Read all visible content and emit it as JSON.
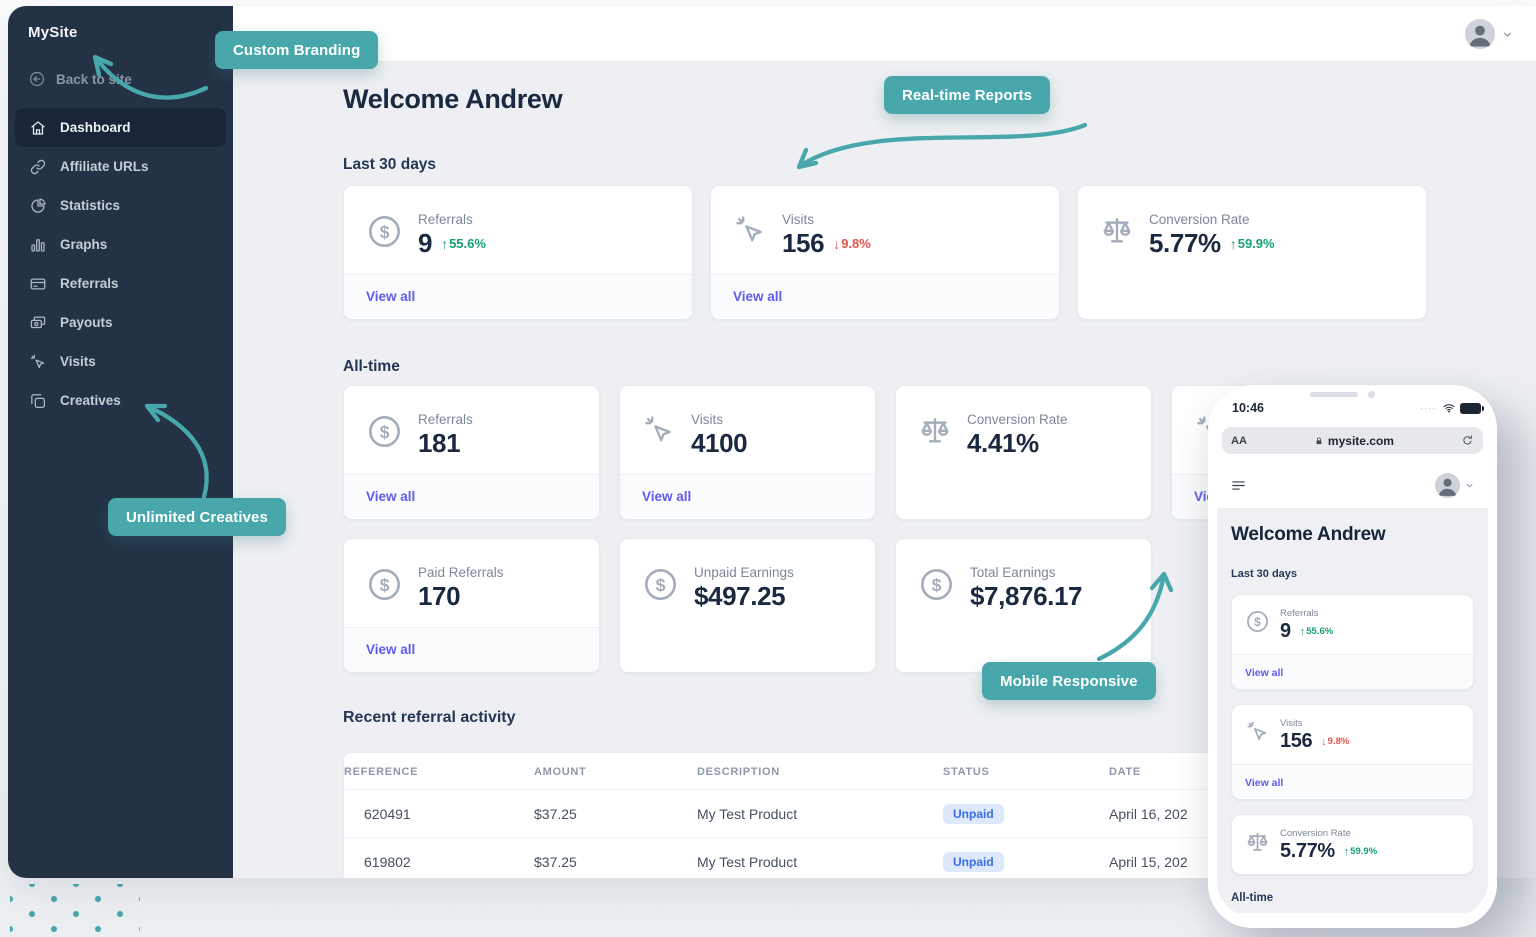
{
  "colors": {
    "teal": "#48A7AB",
    "sidebar": "#233245",
    "link": "#5F5AF0",
    "green": "#16A06F",
    "red": "#E5534B",
    "navy": "#1B2940"
  },
  "brand": {
    "name": "MySite",
    "back_to_site": "Back to site"
  },
  "sidebar_items": [
    {
      "label": "Dashboard",
      "icon": "home-icon",
      "active": true
    },
    {
      "label": "Affiliate URLs",
      "icon": "link-icon",
      "active": false
    },
    {
      "label": "Statistics",
      "icon": "pie-chart-icon",
      "active": false
    },
    {
      "label": "Graphs",
      "icon": "bar-chart-icon",
      "active": false
    },
    {
      "label": "Referrals",
      "icon": "credit-card-icon",
      "active": false
    },
    {
      "label": "Payouts",
      "icon": "cash-icon",
      "active": false
    },
    {
      "label": "Visits",
      "icon": "cursor-click-icon",
      "active": false
    },
    {
      "label": "Creatives",
      "icon": "images-icon",
      "active": false
    }
  ],
  "callouts": [
    {
      "label": "Custom Branding"
    },
    {
      "label": "Real-time Reports"
    },
    {
      "label": "Unlimited Creatives"
    },
    {
      "label": "Mobile Responsive"
    }
  ],
  "main": {
    "welcome": "Welcome Andrew",
    "sections": {
      "last30": {
        "title": "Last 30 days",
        "cards": [
          {
            "icon": "dollar-circle-icon",
            "label": "Referrals",
            "value": "9",
            "delta": "55.6%",
            "trend": "up",
            "view_all": "View all"
          },
          {
            "icon": "cursor-click-icon",
            "label": "Visits",
            "value": "156",
            "delta": "9.8%",
            "trend": "down",
            "view_all": "View all"
          },
          {
            "icon": "scales-icon",
            "label": "Conversion Rate",
            "value": "5.77%",
            "delta": "59.9%",
            "trend": "up"
          }
        ]
      },
      "alltime": {
        "title": "All-time",
        "rows": [
          [
            {
              "icon": "dollar-circle-icon",
              "label": "Referrals",
              "value": "181",
              "view_all": "View all"
            },
            {
              "icon": "cursor-click-icon",
              "label": "Visits",
              "value": "4100",
              "view_all": "View all"
            },
            {
              "icon": "scales-icon",
              "label": "Conversion Rate",
              "value": "4.41%"
            },
            {
              "icon": "cursor-click-icon",
              "label": "",
              "value": "",
              "view_all": "View all",
              "partial": true
            }
          ],
          [
            {
              "icon": "dollar-circle-icon",
              "label": "Paid Referrals",
              "value": "170",
              "view_all": "View all"
            },
            {
              "icon": "dollar-circle-icon",
              "label": "Unpaid Earnings",
              "value": "$497.25"
            },
            {
              "icon": "dollar-circle-icon",
              "label": "Total Earnings",
              "value": "$7,876.17"
            }
          ]
        ]
      }
    },
    "activity": {
      "title": "Recent referral activity",
      "columns": [
        "REFERENCE",
        "AMOUNT",
        "DESCRIPTION",
        "STATUS",
        "DATE"
      ],
      "rows": [
        {
          "reference": "620491",
          "amount": "$37.25",
          "description": "My Test Product",
          "status": "Unpaid",
          "date": "April 16, 202"
        },
        {
          "reference": "619802",
          "amount": "$37.25",
          "description": "My Test Product",
          "status": "Unpaid",
          "date": "April 15, 202"
        }
      ]
    }
  },
  "phone": {
    "time": "10:46",
    "url_prefix": "AA",
    "url": "mysite.com",
    "welcome": "Welcome Andrew",
    "last30_title": "Last 30 days",
    "cards": [
      {
        "icon": "dollar-circle-icon",
        "label": "Referrals",
        "value": "9",
        "delta": "55.6%",
        "trend": "up",
        "view_all": "View all"
      },
      {
        "icon": "cursor-click-icon",
        "label": "Visits",
        "value": "156",
        "delta": "9.8%",
        "trend": "down",
        "view_all": "View all"
      },
      {
        "icon": "scales-icon",
        "label": "Conversion Rate",
        "value": "5.77%",
        "delta": "59.9%",
        "trend": "up"
      }
    ],
    "alltime_title": "All-time"
  }
}
